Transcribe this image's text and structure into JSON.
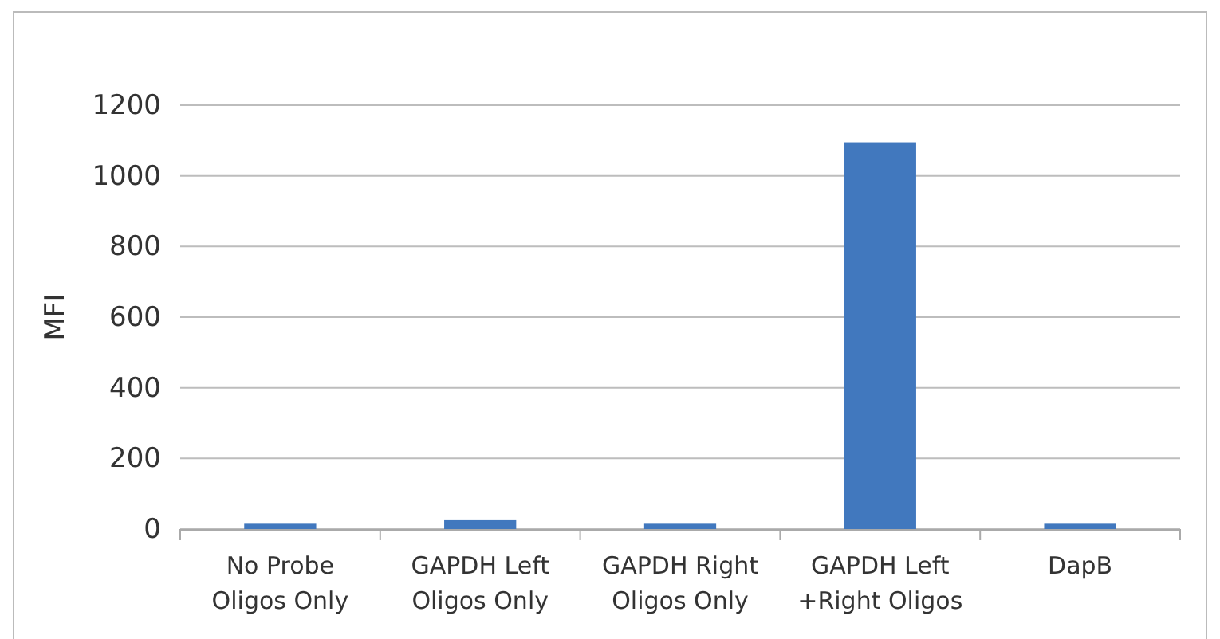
{
  "chart_data": {
    "type": "bar",
    "ylabel": "MFI",
    "categories": [
      "No Probe Oligos Only",
      "GAPDH Left Oligos Only",
      "GAPDH Right Oligos Only",
      "GAPDH Left +Right Oligos",
      "DapB"
    ],
    "values": [
      15,
      25,
      15,
      1095,
      15
    ],
    "color": "#4178be",
    "ylim": [
      0,
      1200
    ],
    "yticks": [
      0,
      200,
      400,
      600,
      800,
      1000,
      1200
    ],
    "grid": "y"
  }
}
